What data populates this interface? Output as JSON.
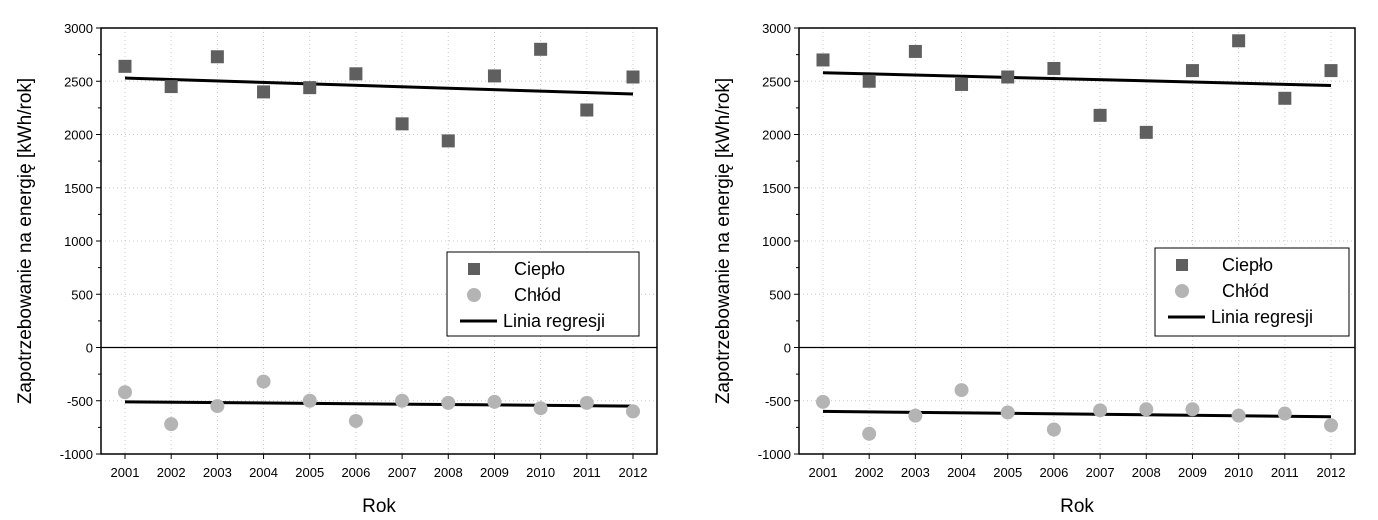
{
  "chart_data": [
    {
      "type": "scatter",
      "xlabel": "Rok",
      "ylabel": "Zapotrzebowanie na energię [kWh/rok]",
      "categories": [
        "2001",
        "2002",
        "2003",
        "2004",
        "2005",
        "2006",
        "2007",
        "2008",
        "2009",
        "2010",
        "2011",
        "2012"
      ],
      "ylim": [
        -1000,
        3000
      ],
      "yticks": [
        "-1000",
        "-500",
        "0",
        "500",
        "1000",
        "1500",
        "2000",
        "2500",
        "3000"
      ],
      "grid": true,
      "legend_position": "right, above zero line",
      "series": [
        {
          "name": "Ciepło",
          "marker": "square",
          "color": "#5f5f5f",
          "values": [
            2640,
            2450,
            2730,
            2400,
            2440,
            2570,
            2100,
            1940,
            2550,
            2800,
            2230,
            2540
          ]
        },
        {
          "name": "Chłód",
          "marker": "circle",
          "color": "#b4b4b4",
          "values": [
            -420,
            -720,
            -550,
            -320,
            -500,
            -690,
            -500,
            -520,
            -510,
            -570,
            -520,
            -600
          ]
        }
      ],
      "regression_name": "Linia regresji",
      "regressions": [
        {
          "start": 2530,
          "end": 2380
        },
        {
          "start": -510,
          "end": -550
        }
      ]
    },
    {
      "type": "scatter",
      "xlabel": "Rok",
      "ylabel": "Zapotrzebowanie na energię [kWh/rok]",
      "categories": [
        "2001",
        "2002",
        "2003",
        "2004",
        "2005",
        "2006",
        "2007",
        "2008",
        "2009",
        "2010",
        "2011",
        "2012"
      ],
      "ylim": [
        -1000,
        3000
      ],
      "yticks": [
        "-1000",
        "-500",
        "0",
        "500",
        "1000",
        "1500",
        "2000",
        "2500",
        "3000"
      ],
      "grid": true,
      "legend_position": "right, above zero line",
      "series": [
        {
          "name": "Ciepło",
          "marker": "square",
          "color": "#5f5f5f",
          "values": [
            2700,
            2500,
            2780,
            2470,
            2540,
            2620,
            2180,
            2020,
            2600,
            2880,
            2340,
            2600
          ]
        },
        {
          "name": "Chłód",
          "marker": "circle",
          "color": "#b4b4b4",
          "values": [
            -510,
            -810,
            -640,
            -400,
            -610,
            -770,
            -590,
            -580,
            -580,
            -640,
            -620,
            -730
          ]
        }
      ],
      "regression_name": "Linia regresji",
      "regressions": [
        {
          "start": 2580,
          "end": 2460
        },
        {
          "start": -600,
          "end": -650
        }
      ]
    }
  ]
}
